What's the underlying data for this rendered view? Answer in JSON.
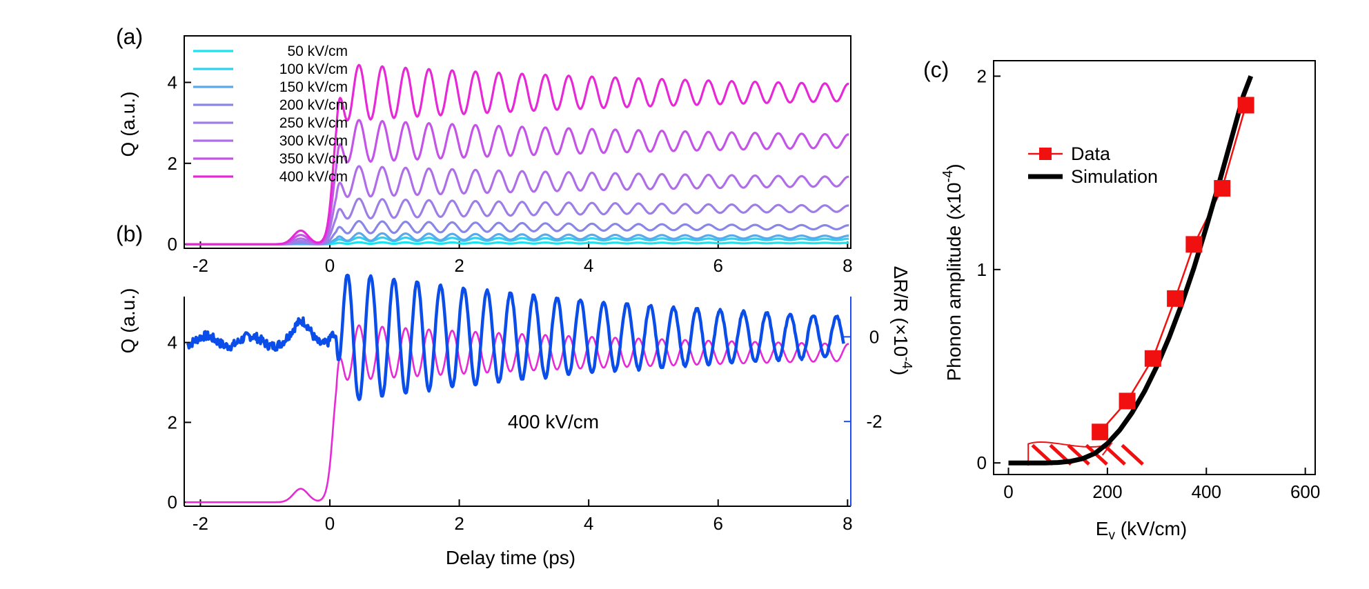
{
  "colors": {
    "series_a": [
      "#19e3ef",
      "#2fd0ef",
      "#5aa9ea",
      "#8887e6",
      "#9d7ee6",
      "#ae6ee7",
      "#c454e7",
      "#e628d6"
    ],
    "simulation_pink": "#e628d6",
    "measured_blue": "#0a4de8",
    "right_axis_blue": "#1d4cf0",
    "data_red": "#f01010",
    "fit_black": "#000000"
  },
  "panel_labels": {
    "a": "(a)",
    "b": "(b)",
    "c": "(c)"
  },
  "chart_data": [
    {
      "id": "a",
      "type": "line",
      "title": "",
      "xlabel": "",
      "ylabel": "Q (a.u.)",
      "xlim": [
        -2.25,
        8.05
      ],
      "ylim": [
        -0.1,
        5.15
      ],
      "xticks": [
        -2,
        0,
        2,
        4,
        6,
        8
      ],
      "xtick_labels": [
        "-2",
        "0",
        "2",
        "4",
        "6",
        "8"
      ],
      "yticks": [
        0,
        2,
        4
      ],
      "ytick_labels": [
        "0",
        "2",
        "4"
      ],
      "legend_position": "top-left",
      "legend": [
        "50 kV/cm",
        "100 kV/cm",
        "150 kV/cm",
        "200 kV/cm",
        "250 kV/cm",
        "300 kV/cm",
        "350 kV/cm",
        "400 kV/cm"
      ],
      "series": [
        {
          "name": "50 kV/cm",
          "field": 50,
          "offset": 0.03,
          "amplitude": 0.02
        },
        {
          "name": "100 kV/cm",
          "field": 100,
          "offset": 0.12,
          "amplitude": 0.05
        },
        {
          "name": "150 kV/cm",
          "field": 150,
          "offset": 0.18,
          "amplitude": 0.1
        },
        {
          "name": "200 kV/cm",
          "field": 200,
          "offset": 0.42,
          "amplitude": 0.16
        },
        {
          "name": "250 kV/cm",
          "field": 250,
          "offset": 0.88,
          "amplitude": 0.26
        },
        {
          "name": "300 kV/cm",
          "field": 300,
          "offset": 1.55,
          "amplitude": 0.4
        },
        {
          "name": "350 kV/cm",
          "field": 350,
          "offset": 2.55,
          "amplitude": 0.55
        },
        {
          "name": "400 kV/cm",
          "field": 400,
          "offset": 3.75,
          "amplitude": 0.72
        }
      ],
      "oscillation_period_ps": 0.36,
      "onset_ps": 0.1
    },
    {
      "id": "b",
      "type": "line",
      "title": "",
      "xlabel": "Delay time (ps)",
      "ylabel": "Q (a.u.)",
      "ylabel_right": "ΔR/R (×10",
      "ylabel_right_exponent": "-4",
      "ylabel_right_suffix": ")",
      "annotation": "400 kV/cm",
      "xlim": [
        -2.25,
        8.05
      ],
      "ylim": [
        -0.1,
        5.15
      ],
      "y2lim": [
        -4.0,
        0.95
      ],
      "xticks": [
        -2,
        0,
        2,
        4,
        6,
        8
      ],
      "xtick_labels": [
        "-2",
        "0",
        "2",
        "4",
        "6",
        "8"
      ],
      "yticks": [
        0,
        2,
        4
      ],
      "ytick_labels": [
        "0",
        "2",
        "4"
      ],
      "y2ticks": [
        0,
        -2
      ],
      "y2tick_labels": [
        "0",
        "-2"
      ],
      "series": [
        {
          "name": "",
          "axis": "left",
          "offset": 3.75,
          "amplitude": 0.72
        },
        {
          "name": "",
          "axis": "right",
          "offset": 0.0,
          "amplitude": 0.95
        }
      ]
    },
    {
      "id": "c",
      "type": "scatter",
      "title": "",
      "xlabel": "E",
      "xlabel_subscript": "v",
      "xlabel_suffix": " (kV/cm)",
      "ylabel": "Phonon amplitude (x10",
      "ylabel_exponent": "-4",
      "ylabel_suffix": ")",
      "xlim": [
        -30,
        620
      ],
      "ylim": [
        -0.06,
        2.08
      ],
      "xticks": [
        0,
        200,
        400,
        600
      ],
      "xtick_labels": [
        "0",
        "200",
        "400",
        "600"
      ],
      "yticks": [
        0,
        1,
        2
      ],
      "ytick_labels": [
        "0",
        "1",
        "2"
      ],
      "legend_position": "upper-left",
      "legend": [
        "Data",
        "Simulation"
      ],
      "series": [
        {
          "name": "Data",
          "x": [
            185,
            240,
            292,
            337,
            375,
            432,
            480
          ],
          "y": [
            0.16,
            0.32,
            0.54,
            0.85,
            1.13,
            1.42,
            1.85
          ]
        },
        {
          "name": "Simulation",
          "x": [
            0,
            25,
            50,
            75,
            100,
            125,
            150,
            175,
            200,
            225,
            250,
            275,
            300,
            325,
            350,
            375,
            400,
            425,
            450,
            475,
            490
          ],
          "y": [
            0.0,
            0.0,
            0.0,
            0.0,
            0.002,
            0.008,
            0.022,
            0.05,
            0.1,
            0.17,
            0.26,
            0.37,
            0.5,
            0.65,
            0.82,
            1.01,
            1.22,
            1.44,
            1.67,
            1.9,
            2.0
          ]
        }
      ],
      "hatched_region_x": [
        40,
        190
      ]
    }
  ]
}
